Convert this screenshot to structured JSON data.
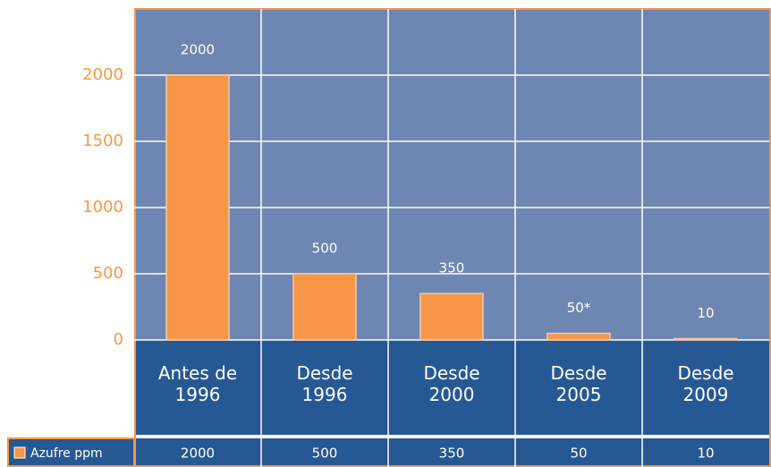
{
  "chart_data": {
    "type": "bar",
    "categories": [
      "Antes de 1996",
      "Desde 1996",
      "Desde 2000",
      "Desde 2005",
      "Desde 2009"
    ],
    "series": [
      {
        "name": "Azufre ppm",
        "color": "#f79646",
        "values": [
          2000,
          500,
          350,
          50,
          10
        ],
        "value_labels": [
          "2000",
          "500",
          "350",
          "50*",
          "10"
        ]
      }
    ],
    "ylim": [
      0,
      2500
    ],
    "yticks": [
      0,
      500,
      1000,
      1500,
      2000
    ],
    "grid": true
  }
}
